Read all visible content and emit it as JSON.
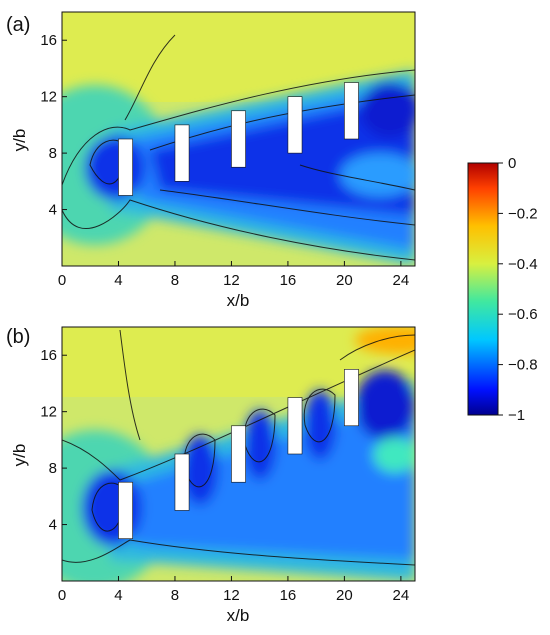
{
  "figure": {
    "panels": [
      {
        "label": "(a)",
        "xlabel": "x/b",
        "ylabel": "y/b"
      },
      {
        "label": "(b)",
        "xlabel": "x/b",
        "ylabel": "y/b"
      }
    ],
    "colorbar": {
      "ticks": [
        "0",
        "−0.2",
        "−0.4",
        "−0.6",
        "−0.8",
        "−1"
      ],
      "range": [
        -1,
        0
      ]
    }
  },
  "chart_data": [
    {
      "type": "heatmap",
      "panel": "(a)",
      "xlabel": "x/b",
      "ylabel": "y/b",
      "xlim": [
        0,
        25
      ],
      "ylim": [
        0,
        18
      ],
      "xticks": [
        "0",
        "4",
        "8",
        "12",
        "16",
        "20",
        "24"
      ],
      "yticks": [
        "4",
        "8",
        "12",
        "16"
      ],
      "colorbar_range": [
        -1,
        0
      ],
      "obstacles": [
        {
          "x": [
            4,
            5
          ],
          "y": [
            5,
            9
          ]
        },
        {
          "x": [
            8,
            9
          ],
          "y": [
            6,
            10
          ]
        },
        {
          "x": [
            12,
            13
          ],
          "y": [
            7,
            11
          ]
        },
        {
          "x": [
            16,
            17
          ],
          "y": [
            8,
            12
          ]
        },
        {
          "x": [
            20,
            21
          ],
          "y": [
            9,
            13
          ]
        }
      ]
    },
    {
      "type": "heatmap",
      "panel": "(b)",
      "xlabel": "x/b",
      "ylabel": "y/b",
      "xlim": [
        0,
        25
      ],
      "ylim": [
        0,
        18
      ],
      "xticks": [
        "0",
        "4",
        "8",
        "12",
        "16",
        "20",
        "24"
      ],
      "yticks": [
        "4",
        "8",
        "12",
        "16"
      ],
      "colorbar_range": [
        -1,
        0
      ],
      "obstacles": [
        {
          "x": [
            4,
            5
          ],
          "y": [
            3,
            7
          ]
        },
        {
          "x": [
            8,
            9
          ],
          "y": [
            5,
            9
          ]
        },
        {
          "x": [
            12,
            13
          ],
          "y": [
            7,
            11
          ]
        },
        {
          "x": [
            16,
            17
          ],
          "y": [
            9,
            13
          ]
        },
        {
          "x": [
            20,
            21
          ],
          "y": [
            11,
            15
          ]
        }
      ]
    }
  ]
}
